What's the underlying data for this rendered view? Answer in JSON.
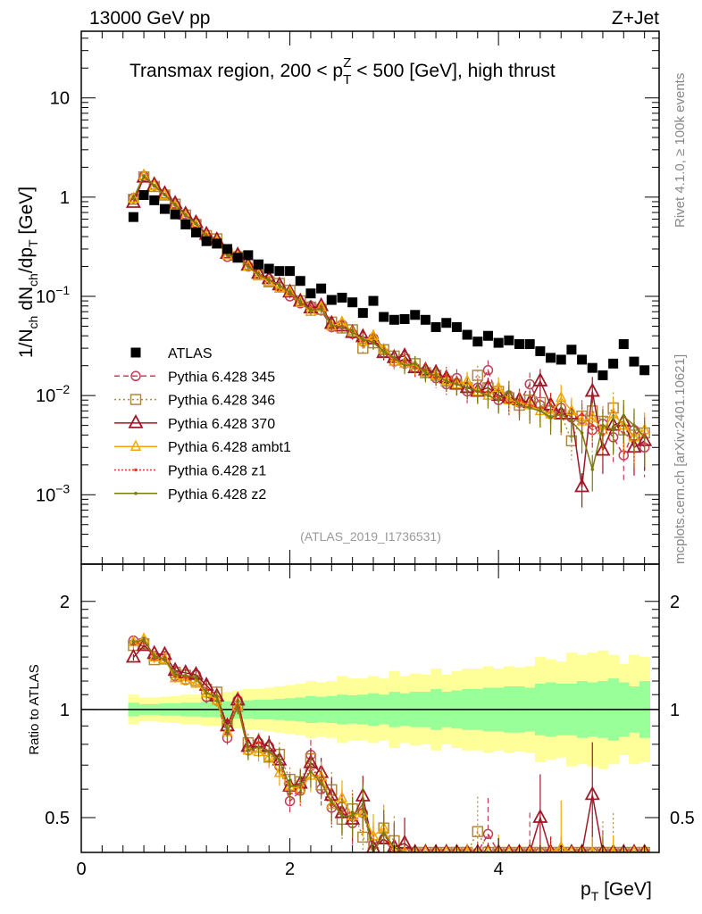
{
  "header": {
    "left": "13000 GeV pp",
    "right": "Z+Jet"
  },
  "side_labels": {
    "rivet": "Rivet 4.1.0, ≥ 100k events",
    "mcplots": "mcplots.cern.ch [arXiv:2401.10621]"
  },
  "chart_data": {
    "type": "scatter",
    "title_parts": {
      "a": "Transmax region, 200 < p",
      "sub": "T",
      "sup": "Z",
      "b": " < 500 [GeV], high thrust"
    },
    "ylabel_parts": {
      "a": "1/N",
      "s1": "ch",
      "b": " dN",
      "s2": "ch",
      "c": "/dp",
      "s3": "T",
      "d": " [GeV]"
    },
    "xlabel_parts": {
      "a": "p",
      "sub": "T",
      "b": " [GeV]"
    },
    "ratio_ylabel": "Ratio to ATLAS",
    "analysis_id": "(ATLAS_2019_I1736531)",
    "xlim": [
      0,
      5.54
    ],
    "ylim": [
      0.0002,
      47
    ],
    "yscale": "log",
    "ratio_ylim": [
      0.4,
      2.54
    ],
    "x_ticks": [
      {
        "v": 0,
        "label": "0"
      },
      {
        "v": 2,
        "label": "2"
      },
      {
        "v": 4,
        "label": "4"
      }
    ],
    "y_ticks": [
      {
        "v": 0.001,
        "base": "10",
        "exp": "−3"
      },
      {
        "v": 0.01,
        "base": "10",
        "exp": "−2"
      },
      {
        "v": 0.1,
        "base": "10",
        "exp": "−1"
      },
      {
        "v": 1,
        "label": "1"
      },
      {
        "v": 10,
        "label": "10"
      }
    ],
    "ratio_ticks": [
      {
        "v": 0.5,
        "label": "0.5"
      },
      {
        "v": 1,
        "label": "1"
      },
      {
        "v": 2,
        "label": "2"
      }
    ],
    "legend_position": "lower-left",
    "x": [
      0.5,
      0.6,
      0.7,
      0.8,
      0.9,
      1.0,
      1.1,
      1.2,
      1.3,
      1.4,
      1.5,
      1.6,
      1.7,
      1.8,
      1.9,
      2.0,
      2.1,
      2.2,
      2.3,
      2.4,
      2.5,
      2.6,
      2.7,
      2.8,
      2.9,
      3.0,
      3.1,
      3.2,
      3.3,
      3.4,
      3.5,
      3.6,
      3.7,
      3.8,
      3.9,
      4.0,
      4.1,
      4.2,
      4.3,
      4.4,
      4.5,
      4.6,
      4.7,
      4.8,
      4.9,
      5.0,
      5.1,
      5.2,
      5.3,
      5.4
    ],
    "data": {
      "name": "ATLAS",
      "color": "#000000",
      "values": [
        0.63,
        1.05,
        0.93,
        0.76,
        0.67,
        0.53,
        0.44,
        0.36,
        0.34,
        0.3,
        0.245,
        0.26,
        0.21,
        0.19,
        0.18,
        0.18,
        0.143,
        0.107,
        0.12,
        0.092,
        0.097,
        0.087,
        0.068,
        0.09,
        0.062,
        0.058,
        0.059,
        0.065,
        0.058,
        0.049,
        0.054,
        0.049,
        0.041,
        0.035,
        0.04,
        0.034,
        0.036,
        0.033,
        0.033,
        0.028,
        0.024,
        0.023,
        0.029,
        0.023,
        0.019,
        0.016,
        0.021,
        0.033,
        0.022,
        0.018
      ],
      "band_inner_rel": [
        0.045,
        0.035,
        0.035,
        0.04,
        0.04,
        0.045,
        0.045,
        0.05,
        0.05,
        0.055,
        0.06,
        0.06,
        0.065,
        0.065,
        0.07,
        0.075,
        0.08,
        0.09,
        0.085,
        0.09,
        0.1,
        0.095,
        0.1,
        0.11,
        0.1,
        0.12,
        0.11,
        0.12,
        0.12,
        0.14,
        0.12,
        0.13,
        0.14,
        0.14,
        0.15,
        0.15,
        0.16,
        0.16,
        0.15,
        0.18,
        0.19,
        0.18,
        0.18,
        0.2,
        0.19,
        0.2,
        0.22,
        0.19,
        0.16,
        0.2
      ],
      "band_outer_rel": [
        0.1,
        0.08,
        0.08,
        0.085,
        0.09,
        0.1,
        0.1,
        0.11,
        0.11,
        0.12,
        0.13,
        0.14,
        0.14,
        0.15,
        0.16,
        0.17,
        0.18,
        0.2,
        0.19,
        0.2,
        0.24,
        0.22,
        0.22,
        0.24,
        0.22,
        0.28,
        0.24,
        0.26,
        0.25,
        0.3,
        0.25,
        0.28,
        0.3,
        0.3,
        0.32,
        0.3,
        0.32,
        0.31,
        0.32,
        0.4,
        0.38,
        0.36,
        0.44,
        0.42,
        0.44,
        0.46,
        0.42,
        0.34,
        0.42,
        0.4
      ],
      "band_inner_color": "#99ff99",
      "band_outer_color": "#ffff99"
    },
    "mc_rel_err": [
      0.02,
      0.02,
      0.02,
      0.02,
      0.03,
      0.03,
      0.03,
      0.04,
      0.04,
      0.05,
      0.05,
      0.06,
      0.06,
      0.07,
      0.08,
      0.08,
      0.09,
      0.1,
      0.1,
      0.12,
      0.12,
      0.13,
      0.14,
      0.15,
      0.16,
      0.17,
      0.18,
      0.19,
      0.2,
      0.21,
      0.22,
      0.23,
      0.24,
      0.25,
      0.26,
      0.27,
      0.28,
      0.3,
      0.31,
      0.32,
      0.33,
      0.35,
      0.36,
      0.38,
      0.4,
      0.42,
      0.44,
      0.46,
      0.48,
      0.5
    ],
    "series": [
      {
        "name": "Pythia 6.428 345",
        "color": "#c0405a",
        "marker": "circle",
        "dash": "6,4",
        "values": [
          0.98,
          1.62,
          1.31,
          1.07,
          0.83,
          0.64,
          0.55,
          0.39,
          0.36,
          0.25,
          0.26,
          0.2,
          0.17,
          0.15,
          0.125,
          0.1,
          0.085,
          0.08,
          0.072,
          0.049,
          0.052,
          0.042,
          0.035,
          0.038,
          0.027,
          0.022,
          0.021,
          0.019,
          0.017,
          0.015,
          0.013,
          0.015,
          0.011,
          0.012,
          0.018,
          0.009,
          0.01,
          0.0085,
          0.013,
          0.008,
          0.0065,
          0.0075,
          0.006,
          0.0058,
          0.0045,
          0.0052,
          0.0038,
          0.0025,
          0.0045,
          0.003
        ]
      },
      {
        "name": "Pythia 6.428 346",
        "color": "#b08840",
        "marker": "square",
        "dash": "2,3",
        "values": [
          0.95,
          1.6,
          1.28,
          1.05,
          0.85,
          0.66,
          0.53,
          0.41,
          0.38,
          0.27,
          0.25,
          0.21,
          0.165,
          0.14,
          0.135,
          0.115,
          0.09,
          0.078,
          0.074,
          0.055,
          0.048,
          0.046,
          0.03,
          0.034,
          0.029,
          0.025,
          0.023,
          0.021,
          0.017,
          0.016,
          0.014,
          0.013,
          0.012,
          0.016,
          0.012,
          0.011,
          0.0095,
          0.008,
          0.009,
          0.0085,
          0.007,
          0.0065,
          0.0035,
          0.0062,
          0.007,
          0.0055,
          0.0075,
          0.0045,
          0.004,
          0.0042
        ]
      },
      {
        "name": "Pythia 6.428 370",
        "color": "#a01828",
        "marker": "triangle",
        "dash": "",
        "values": [
          0.88,
          1.58,
          1.33,
          1.08,
          0.86,
          0.67,
          0.55,
          0.42,
          0.37,
          0.27,
          0.26,
          0.205,
          0.17,
          0.15,
          0.13,
          0.11,
          0.089,
          0.076,
          0.08,
          0.053,
          0.05,
          0.043,
          0.039,
          0.037,
          0.027,
          0.024,
          0.025,
          0.019,
          0.018,
          0.017,
          0.015,
          0.013,
          0.012,
          0.011,
          0.012,
          0.01,
          0.0095,
          0.009,
          0.0085,
          0.014,
          0.008,
          0.0065,
          0.0065,
          0.0012,
          0.011,
          0.0028,
          0.005,
          0.0055,
          0.003,
          0.0035
        ]
      },
      {
        "name": "Pythia 6.428 ambt1",
        "color": "#f0a800",
        "marker": "triangle-small",
        "dash": "",
        "values": [
          0.97,
          1.65,
          1.3,
          1.05,
          0.82,
          0.64,
          0.52,
          0.4,
          0.36,
          0.26,
          0.25,
          0.2,
          0.16,
          0.14,
          0.12,
          0.11,
          0.086,
          0.07,
          0.078,
          0.05,
          0.055,
          0.044,
          0.035,
          0.04,
          0.029,
          0.022,
          0.021,
          0.02,
          0.017,
          0.016,
          0.014,
          0.013,
          0.014,
          0.011,
          0.01,
          0.012,
          0.009,
          0.0085,
          0.008,
          0.007,
          0.0065,
          0.0095,
          0.007,
          0.0055,
          0.006,
          0.0045,
          0.0065,
          0.005,
          0.0038,
          0.0045
        ]
      },
      {
        "name": "Pythia 6.428 z1",
        "color": "#f03020",
        "marker": "dot",
        "dash": "2,2",
        "values": [
          0.96,
          1.62,
          1.29,
          1.06,
          0.83,
          0.65,
          0.54,
          0.41,
          0.37,
          0.26,
          0.26,
          0.205,
          0.17,
          0.145,
          0.13,
          0.105,
          0.084,
          0.074,
          0.076,
          0.05,
          0.05,
          0.045,
          0.036,
          0.035,
          0.028,
          0.023,
          0.022,
          0.019,
          0.018,
          0.015,
          0.016,
          0.013,
          0.012,
          0.011,
          0.011,
          0.0095,
          0.0085,
          0.009,
          0.008,
          0.0075,
          0.008,
          0.006,
          0.0055,
          0.0065,
          0.005,
          0.004,
          0.0048,
          0.0042,
          0.0035,
          0.004
        ]
      },
      {
        "name": "Pythia 6.428 z2",
        "color": "#7a7a10",
        "marker": "dot",
        "dash": "",
        "values": [
          0.97,
          1.64,
          1.31,
          1.05,
          0.84,
          0.66,
          0.54,
          0.4,
          0.37,
          0.26,
          0.25,
          0.2,
          0.165,
          0.145,
          0.13,
          0.11,
          0.088,
          0.072,
          0.075,
          0.051,
          0.049,
          0.044,
          0.037,
          0.034,
          0.028,
          0.024,
          0.02,
          0.021,
          0.017,
          0.016,
          0.014,
          0.013,
          0.012,
          0.011,
          0.01,
          0.009,
          0.011,
          0.008,
          0.0075,
          0.007,
          0.006,
          0.0065,
          0.0055,
          0.0042,
          0.0018,
          0.005,
          0.0045,
          0.0062,
          0.005,
          0.0038
        ]
      }
    ]
  }
}
